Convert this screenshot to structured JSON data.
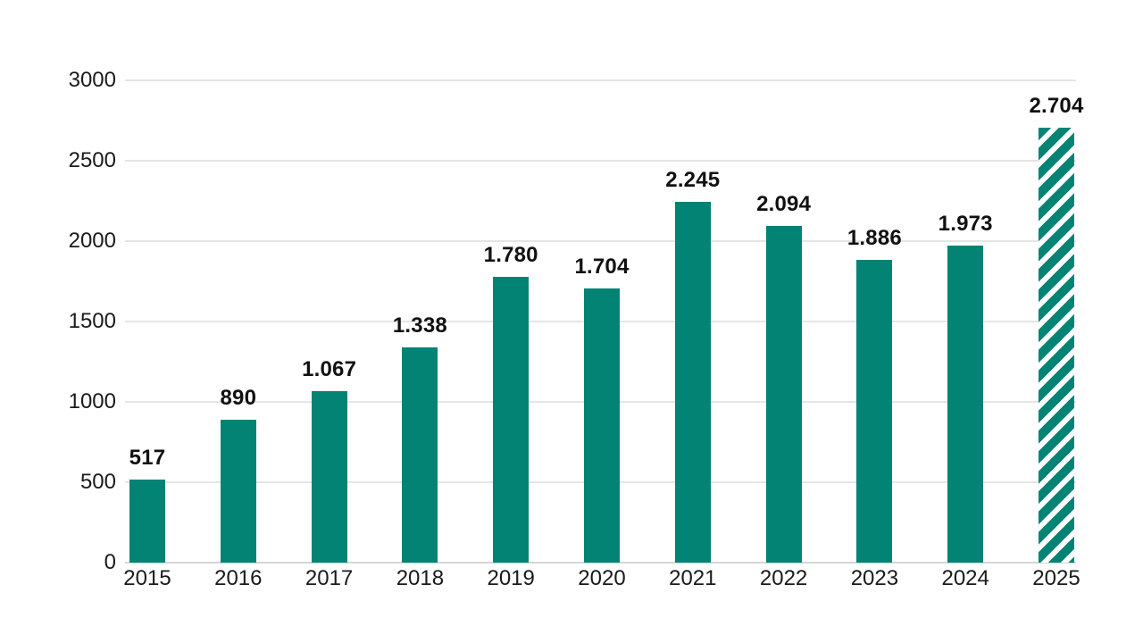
{
  "chart_data": {
    "type": "bar",
    "title": "",
    "xlabel": "",
    "ylabel": "",
    "categories": [
      "2015",
      "2016",
      "2017",
      "2018",
      "2019",
      "2020",
      "2021",
      "2022",
      "2023",
      "2024",
      "2025"
    ],
    "values": [
      517,
      890,
      1067,
      1338,
      1780,
      1704,
      2245,
      2094,
      1886,
      1973,
      2704
    ],
    "value_labels": [
      "517",
      "890",
      "1.067",
      "1.338",
      "1.780",
      "1.704",
      "2.245",
      "2.094",
      "1.886",
      "1.973",
      "2.704"
    ],
    "hatched": [
      false,
      false,
      false,
      false,
      false,
      false,
      false,
      false,
      false,
      false,
      true
    ],
    "ylim": [
      0,
      3000
    ],
    "yticks": [
      0,
      500,
      1000,
      1500,
      2000,
      2500,
      3000
    ],
    "ytick_labels": [
      "0",
      "500",
      "1000",
      "1500",
      "2000",
      "2500",
      "3000"
    ],
    "grid": true,
    "legend": "none",
    "colors": {
      "bar": "#038374",
      "hatch_stripe": "#ffffff",
      "gridline": "#e5e5e5",
      "baseline": "#d6d6d6",
      "axis_text": "#1a1a1a",
      "value_text": "#111111",
      "background": "#ffffff"
    }
  }
}
